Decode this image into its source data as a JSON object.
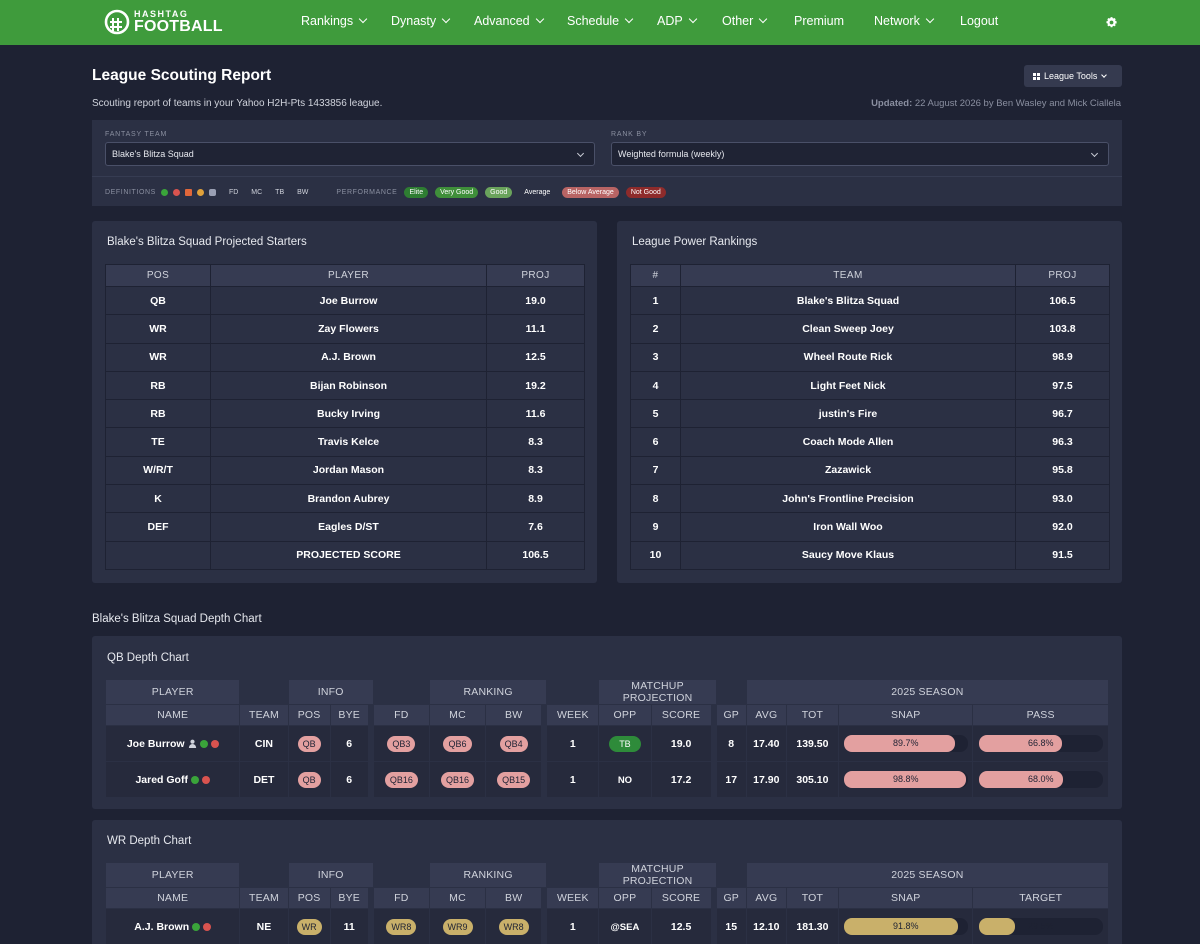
{
  "nav": {
    "logo_small": "HASHTAG",
    "logo_big": "FOOTBALL",
    "items": [
      {
        "label": "Rankings",
        "dropdown": true
      },
      {
        "label": "Dynasty",
        "dropdown": true
      },
      {
        "label": "Advanced",
        "dropdown": true
      },
      {
        "label": "Schedule",
        "dropdown": true
      },
      {
        "label": "ADP",
        "dropdown": true
      },
      {
        "label": "Other",
        "dropdown": true
      },
      {
        "label": "Premium",
        "dropdown": false
      },
      {
        "label": "Network",
        "dropdown": true
      },
      {
        "label": "Logout",
        "dropdown": false
      }
    ]
  },
  "header": {
    "title": "League Scouting Report",
    "subtitle": "Scouting report of teams in your Yahoo H2H-Pts 1433856 league.",
    "updated_label": "Updated:",
    "updated_text": "22 August 2026 by Ben Wasley and Mick Ciallela",
    "league_tools": "League Tools"
  },
  "filters": {
    "fantasy_team_label": "FANTASY TEAM",
    "fantasy_team_value": "Blake's Blitza Squad",
    "rank_by_label": "RANK BY",
    "rank_by_value": "Weighted formula (weekly)",
    "definitions_label": "DEFINITIONS",
    "def_abbrs": [
      "FD",
      "MC",
      "TB",
      "BW"
    ],
    "performance_label": "PERFORMANCE",
    "performance": [
      {
        "label": "Elite",
        "color": "#2e7d32"
      },
      {
        "label": "Very Good",
        "color": "#3f8f3a"
      },
      {
        "label": "Good",
        "color": "#6aa35c"
      },
      {
        "label": "Average",
        "color": "transparent"
      },
      {
        "label": "Below Average",
        "color": "#b86464"
      },
      {
        "label": "Not Good",
        "color": "#8e2b2b"
      }
    ]
  },
  "starters": {
    "title": "Blake's Blitza Squad Projected Starters",
    "headers": [
      "POS",
      "PLAYER",
      "PROJ"
    ],
    "rows": [
      [
        "QB",
        "Joe Burrow",
        "19.0"
      ],
      [
        "WR",
        "Zay Flowers",
        "11.1"
      ],
      [
        "WR",
        "A.J. Brown",
        "12.5"
      ],
      [
        "RB",
        "Bijan Robinson",
        "19.2"
      ],
      [
        "RB",
        "Bucky Irving",
        "11.6"
      ],
      [
        "TE",
        "Travis Kelce",
        "8.3"
      ],
      [
        "W/R/T",
        "Jordan Mason",
        "8.3"
      ],
      [
        "K",
        "Brandon Aubrey",
        "8.9"
      ],
      [
        "DEF",
        "Eagles D/ST",
        "7.6"
      ],
      [
        "",
        "PROJECTED SCORE",
        "106.5"
      ]
    ]
  },
  "power": {
    "title": "League Power Rankings",
    "headers": [
      "#",
      "TEAM",
      "PROJ"
    ],
    "rows": [
      [
        "1",
        "Blake's Blitza Squad",
        "106.5"
      ],
      [
        "2",
        "Clean Sweep Joey",
        "103.8"
      ],
      [
        "3",
        "Wheel Route Rick",
        "98.9"
      ],
      [
        "4",
        "Light Feet Nick",
        "97.5"
      ],
      [
        "5",
        "justin's Fire",
        "96.7"
      ],
      [
        "6",
        "Coach Mode Allen",
        "96.3"
      ],
      [
        "7",
        "Zazawick",
        "95.8"
      ],
      [
        "8",
        "John's Frontline Precision",
        "93.0"
      ],
      [
        "9",
        "Iron Wall Woo",
        "92.0"
      ],
      [
        "10",
        "Saucy Move Klaus",
        "91.5"
      ]
    ]
  },
  "depth": {
    "title": "Blake's Blitza Squad Depth Chart",
    "qb": {
      "title": "QB Depth Chart",
      "groups": [
        "PLAYER",
        "INFO",
        "RANKING",
        "MATCHUP PROJECTION",
        "2025 SEASON"
      ],
      "cols": [
        "NAME",
        "TEAM",
        "POS",
        "BYE",
        "FD",
        "MC",
        "BW",
        "WEEK",
        "OPP",
        "SCORE",
        "GP",
        "AVG",
        "TOT",
        "SNAP",
        "PASS"
      ],
      "rows": [
        {
          "name": "Joe Burrow",
          "team": "CIN",
          "pos": "QB",
          "bye": "6",
          "fd": "QB3",
          "mc": "QB6",
          "bw": "QB4",
          "week": "1",
          "opp": "TB",
          "score": "19.0",
          "gp": "8",
          "avg": "17.40",
          "tot": "139.50",
          "snap": "89.7%",
          "snap_pct": 89.7,
          "pass": "66.8%",
          "pass_pct": 66.8
        },
        {
          "name": "Jared Goff",
          "team": "DET",
          "pos": "QB",
          "bye": "6",
          "fd": "QB16",
          "mc": "QB16",
          "bw": "QB15",
          "week": "1",
          "opp": "NO",
          "score": "17.2",
          "gp": "17",
          "avg": "17.90",
          "tot": "305.10",
          "snap": "98.8%",
          "snap_pct": 98.8,
          "pass": "68.0%",
          "pass_pct": 68.0
        }
      ]
    },
    "wr": {
      "title": "WR Depth Chart",
      "groups": [
        "PLAYER",
        "INFO",
        "RANKING",
        "MATCHUP PROJECTION",
        "2025 SEASON"
      ],
      "cols": [
        "NAME",
        "TEAM",
        "POS",
        "BYE",
        "FD",
        "MC",
        "BW",
        "WEEK",
        "OPP",
        "SCORE",
        "GP",
        "AVG",
        "TOT",
        "SNAP",
        "TARGET"
      ],
      "rows": [
        {
          "name": "A.J. Brown",
          "team": "NE",
          "pos": "WR",
          "bye": "11",
          "fd": "WR8",
          "mc": "WR9",
          "bw": "WR8",
          "week": "1",
          "opp": "@SEA",
          "score": "12.5",
          "gp": "15",
          "avg": "12.10",
          "tot": "181.30",
          "snap": "91.8%",
          "snap_pct": 91.8,
          "target": "29.5%",
          "target_pct": 29.5
        }
      ]
    }
  },
  "colors": {
    "nav_green": "#3f9b3c",
    "bg": "#1e2233",
    "panel": "#2b3044",
    "qb_badge": "#e3a0a0",
    "wr_badge": "#c9b06a",
    "elite_green": "#2e8b3a"
  }
}
